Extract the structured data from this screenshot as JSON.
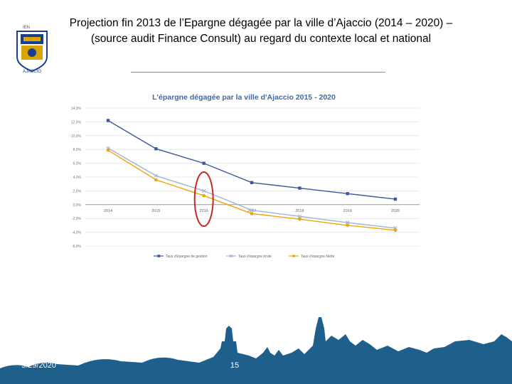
{
  "slide": {
    "title_line1": "Projection fin 2013 de l’Epargne dégagée par la ville d’Ajaccio (2014 – 2020) –",
    "title_line2": "(source audit Finance Consult) au regard du contexte local et national",
    "date": "9/29/2020",
    "page_number": "15"
  },
  "logo": {
    "top_text": "IEN",
    "bottom_text": "AJACCIO",
    "accent_color": "#1b3f8f",
    "gold_color": "#d9a300"
  },
  "colors": {
    "footer": "#1e5f8c",
    "highlight_ellipse": "#c62828"
  },
  "chart_data": {
    "type": "line",
    "title": "L'épargne dégagée par la ville d'Ajaccio 2015 - 2020",
    "categories": [
      "2014",
      "2015",
      "2016",
      "2017",
      "2018",
      "2019",
      "2020"
    ],
    "ylim": [
      -6,
      14
    ],
    "yticks": [
      "14,0%",
      "12,0%",
      "10,0%",
      "8,0%",
      "6,0%",
      "4,0%",
      "2,0%",
      "0,0%",
      "-2,0%",
      "-4,0%",
      "-6,0%"
    ],
    "series": [
      {
        "name": "Taux d'épargne de gestion",
        "color": "#3b5a9a",
        "marker": "square",
        "values": [
          12.2,
          8.1,
          6.0,
          3.2,
          2.4,
          1.6,
          0.8
        ]
      },
      {
        "name": "Taux d'épargne brute",
        "color": "#9fb5cd",
        "marker": "x",
        "values": [
          8.2,
          4.2,
          2.0,
          -0.8,
          -1.7,
          -2.6,
          -3.4
        ]
      },
      {
        "name": "Taux d'épargne Nette",
        "color": "#f0a30a",
        "marker": "circle",
        "values": [
          7.9,
          3.6,
          1.3,
          -1.3,
          -2.1,
          -3.0,
          -3.7
        ]
      }
    ],
    "highlighted_category": "2016",
    "grid": true,
    "legend_position": "bottom"
  }
}
